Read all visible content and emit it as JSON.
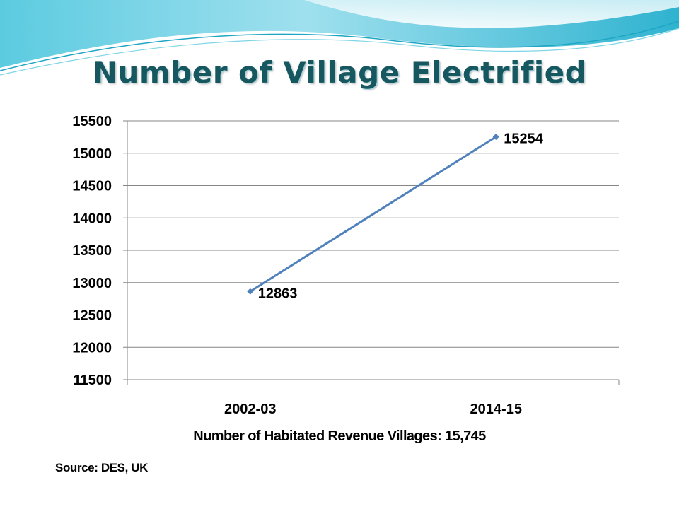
{
  "slide": {
    "title": "Number of  Village Electrified",
    "footnote": "Number of Habitated Revenue Villages: 15,745",
    "source": "Source: DES, UK"
  },
  "colors": {
    "title": "#17575f",
    "series_line": "#4f81bd",
    "gridline": "#868686",
    "wave_light": "#bfe8f2",
    "wave_dark": "#49bfd6"
  },
  "chart_data": {
    "type": "line",
    "title": "Number of  Village Electrified",
    "xlabel": "",
    "ylabel": "",
    "categories": [
      "2002-03",
      "2014-15"
    ],
    "series": [
      {
        "values": [
          12863,
          15254
        ],
        "data_labels": [
          "12863",
          "15254"
        ]
      }
    ],
    "ylim": [
      11500,
      15500
    ],
    "yticks": [
      11500,
      12000,
      12500,
      13000,
      13500,
      14000,
      14500,
      15000,
      15500
    ],
    "grid": true,
    "legend": "none"
  }
}
